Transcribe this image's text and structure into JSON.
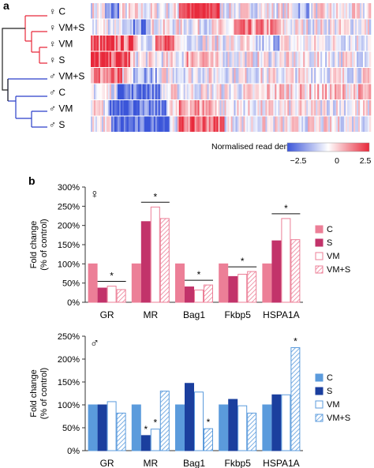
{
  "panel_a": {
    "label": "a",
    "heatmap": {
      "rows": [
        {
          "sex_symbol": "♀",
          "group": "C"
        },
        {
          "sex_symbol": "♀",
          "group": "VM+S"
        },
        {
          "sex_symbol": "♀",
          "group": "VM"
        },
        {
          "sex_symbol": "♀",
          "group": "S"
        },
        {
          "sex_symbol": "♂",
          "group": "VM+S"
        },
        {
          "sex_symbol": "♂",
          "group": "C"
        },
        {
          "sex_symbol": "♂",
          "group": "VM"
        },
        {
          "sex_symbol": "♂",
          "group": "S"
        }
      ],
      "colorbar": {
        "title": "Normalised read density",
        "ticks": [
          "−2.5",
          "0",
          "2.5"
        ],
        "min": -2.5,
        "max": 2.5,
        "low_color": "#3b55d9",
        "mid_color": "#ffffff",
        "high_color": "#e8283a"
      },
      "dendrogram_colors": {
        "female": "#e8283a",
        "male": "#2b3fc9",
        "root": "#222222"
      }
    }
  },
  "panel_b": {
    "label": "b",
    "colors": {
      "female_light": "#ec7f97",
      "female_dark": "#c2336a",
      "male_light": "#5b9bdc",
      "male_dark": "#1b3f9e"
    },
    "chart_data": [
      {
        "type": "bar",
        "sex_symbol": "♀",
        "categories": [
          "GR",
          "MR",
          "Bag1",
          "Fkbp5",
          "HSPA1A"
        ],
        "series": [
          {
            "name": "C",
            "values": [
              100,
              100,
              100,
              100,
              100
            ]
          },
          {
            "name": "S",
            "values": [
              37,
              210,
              40,
              67,
              160
            ]
          },
          {
            "name": "VM",
            "values": [
              42,
              248,
              32,
              73,
              218
            ]
          },
          {
            "name": "VM+S",
            "values": [
              33,
              218,
              45,
              80,
              163
            ]
          }
        ],
        "ylabel": "Fold change\n(% of control)",
        "ylim": [
          0,
          300
        ],
        "yticks": [
          "0%",
          "50%",
          "100%",
          "150%",
          "200%",
          "250%",
          "300%"
        ],
        "significance": [
          {
            "category": "GR",
            "text": "*"
          },
          {
            "category": "MR",
            "text": "*"
          },
          {
            "category": "Bag1",
            "text": "*"
          },
          {
            "category": "Fkbp5",
            "text": "*"
          },
          {
            "category": "HSPA1A",
            "text": "*"
          }
        ],
        "legend": "right"
      },
      {
        "type": "bar",
        "sex_symbol": "♂",
        "categories": [
          "GR",
          "MR",
          "Bag1",
          "Fkbp5",
          "HSPA1A"
        ],
        "series": [
          {
            "name": "C",
            "values": [
              100,
              100,
              100,
              100,
              100
            ]
          },
          {
            "name": "S",
            "values": [
              100,
              33,
              147,
              112,
              122
            ]
          },
          {
            "name": "VM",
            "values": [
              107,
              47,
              128,
              98,
              122
            ]
          },
          {
            "name": "VM+S",
            "values": [
              82,
              130,
              48,
              82,
              225
            ]
          }
        ],
        "ylabel": "Fold change\n(% of control)",
        "ylim": [
          0,
          250
        ],
        "yticks": [
          "0%",
          "50%",
          "100%",
          "150%",
          "200%",
          "250%"
        ],
        "significance_marks": [
          {
            "category": "MR",
            "series": "S",
            "text": "*"
          },
          {
            "category": "MR",
            "series": "VM",
            "text": "*"
          },
          {
            "category": "Bag1",
            "series": "VM+S",
            "text": "*"
          },
          {
            "category": "HSPA1A",
            "series": "VM+S",
            "text": "*"
          }
        ],
        "legend": "right"
      }
    ]
  }
}
